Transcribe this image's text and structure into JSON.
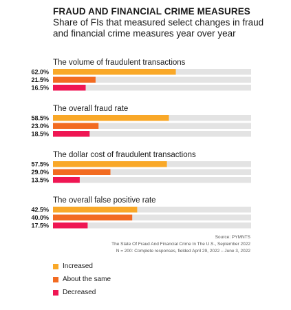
{
  "chart_data": {
    "type": "bar",
    "title": "FRAUD AND FINANCIAL CRIME MEASURES",
    "subtitle": "Share of FIs that measured select changes in fraud and financial crime measures year over year",
    "xlim": [
      0,
      100
    ],
    "groups": [
      {
        "label": "The volume of fraudulent transactions",
        "values": [
          62.0,
          21.5,
          16.5
        ],
        "value_labels": [
          "62.0%",
          "21.5%",
          "16.5%"
        ]
      },
      {
        "label": "The overall fraud rate",
        "values": [
          58.5,
          23.0,
          18.5
        ],
        "value_labels": [
          "58.5%",
          "23.0%",
          "18.5%"
        ]
      },
      {
        "label": "The dollar cost of fraudulent transactions",
        "values": [
          57.5,
          29.0,
          13.5
        ],
        "value_labels": [
          "57.5%",
          "29.0%",
          "13.5%"
        ]
      },
      {
        "label": "The overall false positive rate",
        "values": [
          42.5,
          40.0,
          17.5
        ],
        "value_labels": [
          "42.5%",
          "40.0%",
          "17.5%"
        ]
      }
    ],
    "series": [
      {
        "name": "Increased",
        "color": "#f9a828"
      },
      {
        "name": "About the same",
        "color": "#f26b21"
      },
      {
        "name": "Decreased",
        "color": "#ef1653"
      }
    ],
    "track_color": "#e3e3e3",
    "legend_position": "bottom-left"
  },
  "source": {
    "line1": "Source: PYMNTS",
    "line2": "The State Of Fraud And Financial Crime In The U.S., September 2022",
    "line3": "N = 200: Complete responses, fielded April 29, 2022 – June 3, 2022"
  }
}
